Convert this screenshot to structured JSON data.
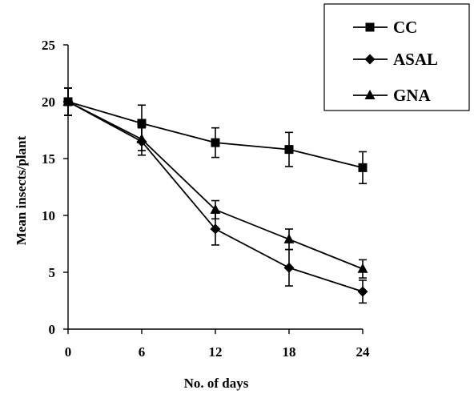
{
  "chart_data": {
    "type": "line",
    "title": "",
    "xlabel": "No. of days",
    "ylabel": "Mean insects/plant",
    "x": [
      0,
      6,
      12,
      18,
      24
    ],
    "x_tick_labels": [
      "0",
      "6",
      "12",
      "18",
      "24"
    ],
    "xlim": [
      0,
      24
    ],
    "y_ticks": [
      0,
      5,
      10,
      15,
      20,
      25
    ],
    "y_tick_labels": [
      "0",
      "5",
      "10",
      "15",
      "20",
      "25"
    ],
    "ylim": [
      0,
      25
    ],
    "grid": false,
    "legend_position": "top-right",
    "series": [
      {
        "name": "CC",
        "marker": "square",
        "values": [
          20.0,
          18.1,
          16.4,
          15.8,
          14.2
        ],
        "errors": [
          1.2,
          1.6,
          1.3,
          1.5,
          1.4
        ]
      },
      {
        "name": "ASAL",
        "marker": "diamond",
        "values": [
          20.0,
          16.5,
          8.8,
          5.4,
          3.3
        ],
        "errors": [
          1.2,
          1.2,
          1.4,
          1.6,
          1.0
        ]
      },
      {
        "name": "GNA",
        "marker": "triangle",
        "values": [
          20.0,
          16.7,
          10.5,
          7.9,
          5.3
        ],
        "errors": [
          1.2,
          1.0,
          0.8,
          0.9,
          0.8
        ]
      }
    ],
    "colors": {
      "line": "#000000",
      "background": "#ffffff"
    }
  }
}
